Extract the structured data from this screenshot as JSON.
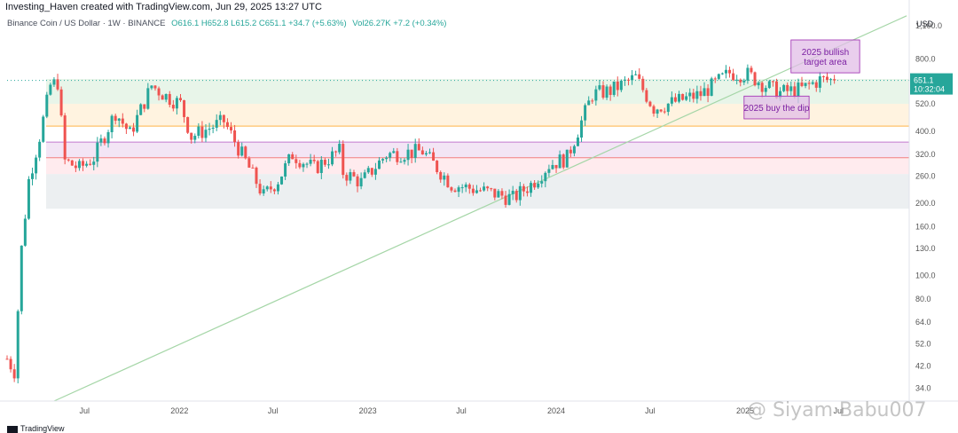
{
  "header": {
    "created_by": "Investing_Haven created with TradingView.com, Jun 29, 2025 13:27 UTC"
  },
  "legend": {
    "symbol": "Binance Coin / US Dollar · 1W · BINANCE",
    "ohlc": "O616.1  H652.8  L615.2  C651.1  +34.7 (+5.63%)",
    "volume": "Vol26.27K  +7.2 (+0.34%)"
  },
  "footer": {
    "brand": "TradingView"
  },
  "watermark": {
    "text": "@ Siyam Babu007"
  },
  "colors": {
    "up": "#26a69a",
    "down": "#ef5350",
    "trendline": "#a5d6a7",
    "annotation_fill": "#e1bee7",
    "annotation_text": "#7b1fa2"
  },
  "chart_data": {
    "type": "candlestick",
    "title": "Binance Coin / US Dollar · 1W · BINANCE",
    "ylabel": "USD",
    "y_scale": "log",
    "ylim": [
      30,
      1250
    ],
    "y_ticks": [
      1100,
      800,
      520,
      400,
      320,
      260,
      200,
      160,
      130,
      100,
      80,
      64,
      52,
      42,
      34
    ],
    "y_tick_labels": [
      "1,100.0",
      "800.0",
      "520.0",
      "400.0",
      "320.0",
      "260.0",
      "200.0",
      "160.0",
      "130.0",
      "100.0",
      "80.0",
      "64.0",
      "52.0",
      "42.0",
      "34.0"
    ],
    "x_range": [
      "2021-02-01",
      "2025-11-15"
    ],
    "x_ticks": [
      {
        "date": "2021-07-01",
        "label": "Jul"
      },
      {
        "date": "2022-01-01",
        "label": "2022"
      },
      {
        "date": "2022-07-01",
        "label": "Jul"
      },
      {
        "date": "2023-01-01",
        "label": "2023"
      },
      {
        "date": "2023-07-01",
        "label": "Jul"
      },
      {
        "date": "2024-01-01",
        "label": "2024"
      },
      {
        "date": "2024-07-01",
        "label": "Jul"
      },
      {
        "date": "2025-01-01",
        "label": "2025"
      },
      {
        "date": "2025-07-01",
        "label": "Jul"
      }
    ],
    "price_key_points": [
      {
        "date": "2021-02-01",
        "price": 45
      },
      {
        "date": "2021-02-15",
        "price": 40
      },
      {
        "date": "2021-03-01",
        "price": 130
      },
      {
        "date": "2021-03-15",
        "price": 250
      },
      {
        "date": "2021-04-05",
        "price": 380
      },
      {
        "date": "2021-04-26",
        "price": 620
      },
      {
        "date": "2021-05-10",
        "price": 640
      },
      {
        "date": "2021-05-24",
        "price": 300
      },
      {
        "date": "2021-06-21",
        "price": 280
      },
      {
        "date": "2021-07-19",
        "price": 310
      },
      {
        "date": "2021-08-30",
        "price": 480
      },
      {
        "date": "2021-09-27",
        "price": 390
      },
      {
        "date": "2021-11-08",
        "price": 620
      },
      {
        "date": "2021-12-06",
        "price": 560
      },
      {
        "date": "2022-01-03",
        "price": 520
      },
      {
        "date": "2022-01-24",
        "price": 380
      },
      {
        "date": "2022-03-28",
        "price": 440
      },
      {
        "date": "2022-05-09",
        "price": 300
      },
      {
        "date": "2022-06-13",
        "price": 215
      },
      {
        "date": "2022-07-11",
        "price": 250
      },
      {
        "date": "2022-08-08",
        "price": 320
      },
      {
        "date": "2022-09-19",
        "price": 280
      },
      {
        "date": "2022-11-07",
        "price": 330
      },
      {
        "date": "2022-11-14",
        "price": 270
      },
      {
        "date": "2022-12-19",
        "price": 245
      },
      {
        "date": "2023-02-06",
        "price": 320
      },
      {
        "date": "2023-04-17",
        "price": 330
      },
      {
        "date": "2023-06-12",
        "price": 240
      },
      {
        "date": "2023-08-14",
        "price": 225
      },
      {
        "date": "2023-10-09",
        "price": 210
      },
      {
        "date": "2023-11-13",
        "price": 240
      },
      {
        "date": "2023-12-18",
        "price": 290
      },
      {
        "date": "2024-01-22",
        "price": 310
      },
      {
        "date": "2024-03-11",
        "price": 570
      },
      {
        "date": "2024-04-15",
        "price": 590
      },
      {
        "date": "2024-06-03",
        "price": 670
      },
      {
        "date": "2024-07-08",
        "price": 500
      },
      {
        "date": "2024-08-05",
        "price": 520
      },
      {
        "date": "2024-10-07",
        "price": 570
      },
      {
        "date": "2024-12-02",
        "price": 700
      },
      {
        "date": "2025-01-06",
        "price": 690
      },
      {
        "date": "2025-02-10",
        "price": 620
      },
      {
        "date": "2025-03-10",
        "price": 580
      },
      {
        "date": "2025-04-21",
        "price": 600
      },
      {
        "date": "2025-05-26",
        "price": 655
      },
      {
        "date": "2025-06-23",
        "price": 651.1
      }
    ],
    "last_price": "651.1",
    "countdown": "10:32:04",
    "horizontal_zones": [
      {
        "from": 520,
        "to": 660,
        "color": "#e8f5e9"
      },
      {
        "from": 420,
        "to": 520,
        "color": "#fff3e0"
      },
      {
        "from": 310,
        "to": 360,
        "color": "#f3e5f5"
      },
      {
        "from": 265,
        "to": 310,
        "color": "#ffebee"
      },
      {
        "from": 190,
        "to": 265,
        "color": "#eceff1"
      }
    ],
    "horizontal_lines": [
      {
        "price": 420,
        "color": "#ff9800"
      },
      {
        "price": 360,
        "color": "#ab47bc"
      },
      {
        "price": 310,
        "color": "#ef5350"
      }
    ],
    "trendline": {
      "from": {
        "date": "2021-05-03",
        "price": 30
      },
      "to": {
        "date": "2025-11-10",
        "price": 1210
      }
    },
    "annotations": [
      {
        "text": "2025 bullish\ntarget area",
        "date_from": "2025-03-31",
        "date_to": "2025-08-11",
        "price_low": 700,
        "price_high": 960
      },
      {
        "text": "2025 buy the dip",
        "date_from": "2024-12-30",
        "date_to": "2025-05-05",
        "price_low": 450,
        "price_high": 560
      }
    ]
  }
}
